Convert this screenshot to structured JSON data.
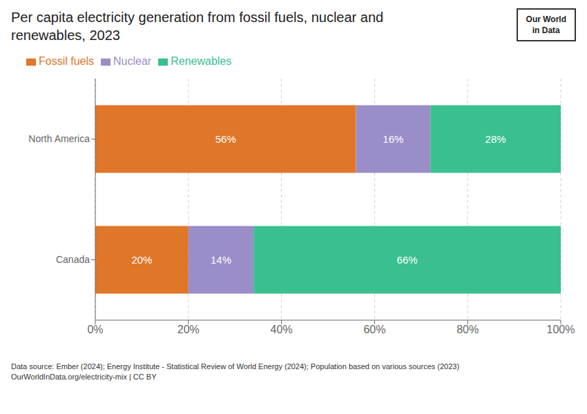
{
  "chart_data": {
    "type": "bar",
    "title": "Per capita electricity generation from fossil fuels, nuclear and\nrenewables, 2023",
    "orientation": "horizontal",
    "stacked": true,
    "data_labels": true,
    "grid": true,
    "legend": "upper left",
    "categories": [
      "North America",
      "Canada"
    ],
    "series": [
      {
        "name": "Fossil fuels",
        "color": "#E07628",
        "values": [
          56,
          20
        ],
        "value_labels": [
          "56%",
          "20%"
        ]
      },
      {
        "name": "Nuclear",
        "color": "#9B8DC8",
        "values": [
          16,
          14
        ],
        "value_labels": [
          "16%",
          "14%"
        ]
      },
      {
        "name": "Renewables",
        "color": "#3ABF90",
        "values": [
          28,
          66
        ],
        "value_labels": [
          "28%",
          "66%"
        ]
      }
    ],
    "xlim": [
      0,
      100
    ],
    "xticks": [
      {
        "value": 0,
        "label": "0%"
      },
      {
        "value": 20,
        "label": "20%"
      },
      {
        "value": 40,
        "label": "40%"
      },
      {
        "value": 60,
        "label": "60%"
      },
      {
        "value": 80,
        "label": "80%"
      },
      {
        "value": 100,
        "label": "100%"
      }
    ],
    "annotations": [
      "Our World\nin Data",
      "Data source: Ember (2024); Energy Institute - Statistical Review of World Energy (2024); Population based on various sources (2023)\nOurWorldInData.org/electricity-mix | CC BY"
    ]
  }
}
